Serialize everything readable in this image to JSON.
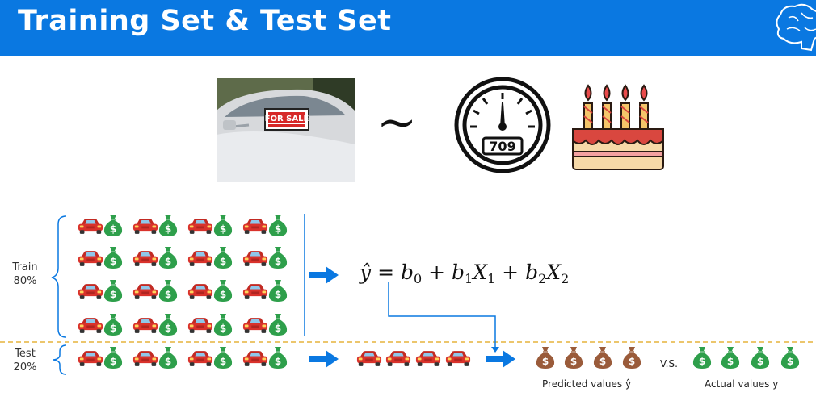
{
  "title": "Training Set & Test Set",
  "photo": {
    "sign_text": "FOR SALE"
  },
  "relation_symbol": "~",
  "gauge": {
    "reading": "709"
  },
  "train": {
    "label": "Train",
    "percent": "80%"
  },
  "test": {
    "label": "Test",
    "percent": "20%"
  },
  "formula": {
    "lhs": "ŷ",
    "eq": " = ",
    "b0": "b",
    "b0_sub": "0",
    "plus1": " + ",
    "b1": "b",
    "b1_sub": "1",
    "x1": "X",
    "x1_sub": "1",
    "plus2": " + ",
    "b2": "b",
    "b2_sub": "2",
    "x2": "X",
    "x2_sub": "2"
  },
  "predicted_label": "Predicted values ŷ",
  "vs_label": "V.S.",
  "actual_label": "Actual values y",
  "colors": {
    "header": "#0a78e1",
    "arrow": "#0a78e1",
    "car": "#d9322b",
    "money_bag": "#2e9f4b",
    "predicted_bag": "#9a5b3a",
    "divider": "#e6b43c"
  }
}
